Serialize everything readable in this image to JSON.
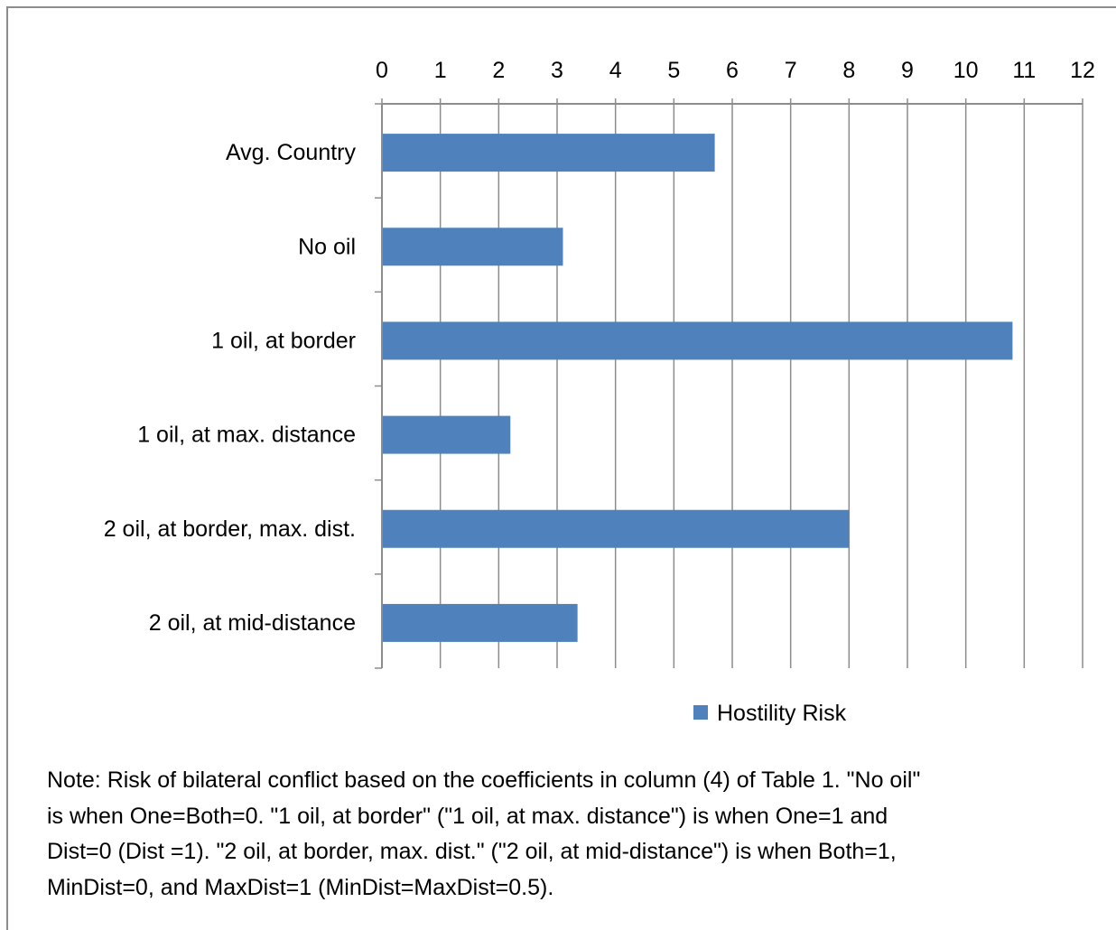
{
  "chart_data": {
    "type": "bar",
    "orientation": "horizontal",
    "categories": [
      "Avg. Country",
      "No oil",
      "1 oil, at border",
      "1 oil, at max. distance",
      "2 oil, at border, max. dist.",
      "2 oil, at mid-distance"
    ],
    "series": [
      {
        "name": "Hostility Risk",
        "values": [
          5.7,
          3.1,
          10.8,
          2.2,
          8.0,
          3.35
        ],
        "color": "#4f81bd"
      }
    ],
    "xlim": [
      0,
      12
    ],
    "x_ticks": [
      "0",
      "1",
      "2",
      "3",
      "4",
      "5",
      "6",
      "7",
      "8",
      "9",
      "10",
      "11",
      "12"
    ],
    "x_axis_position": "top",
    "grid": "vertical",
    "legend": "bottom",
    "title": "",
    "xlabel": "",
    "ylabel": ""
  },
  "note": {
    "lines": [
      "Note:  Risk of bilateral conflict based on the coefficients in column (4) of Table 1. \"No oil\"",
      "is when One=Both=0.  \"1 oil, at border\" (\"1 oil, at max. distance\") is when One=1 and",
      "Dist=0 (Dist =1).  \"2 oil, at border, max. dist.\" (\"2 oil, at mid-distance\") is  when Both=1,",
      "MinDist=0, and MaxDist=1 (MinDist=MaxDist=0.5)."
    ]
  }
}
